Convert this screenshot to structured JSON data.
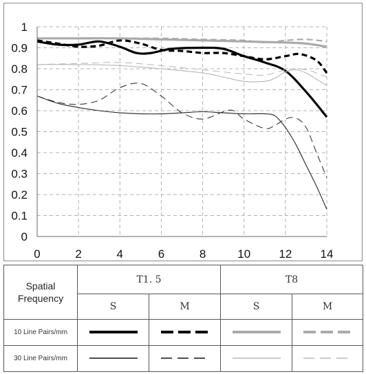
{
  "chart_data": {
    "type": "line",
    "title": "",
    "xlabel": "",
    "ylabel": "",
    "xlim": [
      0,
      14
    ],
    "ylim": [
      0,
      1
    ],
    "xticks": [
      "0",
      "2",
      "4",
      "6",
      "8",
      "10",
      "12",
      "14"
    ],
    "yticks": [
      "0",
      "0.1",
      "0.2",
      "0.3",
      "0.4",
      "0.5",
      "0.6",
      "0.7",
      "0.8",
      "0.9",
      "1"
    ],
    "grid": true,
    "series": [
      {
        "key": "t15-10-s",
        "color": "#000000",
        "width": 3.2,
        "dash": "solid",
        "points": [
          [
            0,
            0.93
          ],
          [
            1,
            0.915
          ],
          [
            2,
            0.915
          ],
          [
            3,
            0.93
          ],
          [
            4,
            0.905
          ],
          [
            4.8,
            0.875
          ],
          [
            5.5,
            0.875
          ],
          [
            6.5,
            0.895
          ],
          [
            8,
            0.9
          ],
          [
            9,
            0.895
          ],
          [
            10,
            0.86
          ],
          [
            11,
            0.83
          ],
          [
            12,
            0.79
          ],
          [
            13,
            0.69
          ],
          [
            14,
            0.57
          ]
        ]
      },
      {
        "key": "t15-10-m",
        "color": "#000000",
        "width": 3.2,
        "dash": "8,5",
        "points": [
          [
            0,
            0.935
          ],
          [
            1,
            0.92
          ],
          [
            2,
            0.905
          ],
          [
            3,
            0.91
          ],
          [
            4,
            0.935
          ],
          [
            5,
            0.92
          ],
          [
            6,
            0.89
          ],
          [
            7,
            0.885
          ],
          [
            8,
            0.875
          ],
          [
            9,
            0.875
          ],
          [
            10,
            0.86
          ],
          [
            11,
            0.845
          ],
          [
            12,
            0.86
          ],
          [
            12.7,
            0.87
          ],
          [
            13.5,
            0.84
          ],
          [
            14,
            0.78
          ]
        ]
      },
      {
        "key": "t15-30-s",
        "color": "#222222",
        "width": 1.1,
        "dash": "solid",
        "points": [
          [
            0,
            0.67
          ],
          [
            1,
            0.635
          ],
          [
            2,
            0.615
          ],
          [
            3,
            0.6
          ],
          [
            4,
            0.59
          ],
          [
            5,
            0.585
          ],
          [
            6,
            0.585
          ],
          [
            7,
            0.59
          ],
          [
            8,
            0.595
          ],
          [
            9,
            0.59
          ],
          [
            10,
            0.585
          ],
          [
            11,
            0.585
          ],
          [
            11.5,
            0.575
          ],
          [
            12,
            0.52
          ],
          [
            12.5,
            0.44
          ],
          [
            13,
            0.34
          ],
          [
            13.5,
            0.24
          ],
          [
            14,
            0.13
          ]
        ]
      },
      {
        "key": "t15-30-m",
        "color": "#333333",
        "width": 1.1,
        "dash": "10,6",
        "points": [
          [
            0,
            0.67
          ],
          [
            1,
            0.64
          ],
          [
            2,
            0.63
          ],
          [
            3,
            0.65
          ],
          [
            4,
            0.71
          ],
          [
            5,
            0.73
          ],
          [
            6,
            0.67
          ],
          [
            7,
            0.59
          ],
          [
            8,
            0.56
          ],
          [
            9,
            0.595
          ],
          [
            9.5,
            0.6
          ],
          [
            10,
            0.56
          ],
          [
            11,
            0.515
          ],
          [
            11.5,
            0.53
          ],
          [
            12,
            0.56
          ],
          [
            12.5,
            0.565
          ],
          [
            13,
            0.52
          ],
          [
            13.5,
            0.4
          ],
          [
            14,
            0.28
          ]
        ]
      },
      {
        "key": "t8-10-s",
        "color": "#aaaaaa",
        "width": 3.2,
        "dash": "solid",
        "points": [
          [
            0,
            0.945
          ],
          [
            2,
            0.945
          ],
          [
            4,
            0.945
          ],
          [
            6,
            0.94
          ],
          [
            8,
            0.935
          ],
          [
            10,
            0.93
          ],
          [
            12,
            0.925
          ],
          [
            13,
            0.92
          ],
          [
            14,
            0.905
          ]
        ]
      },
      {
        "key": "t8-10-m",
        "color": "#aaaaaa",
        "width": 2.2,
        "dash": "9,5",
        "points": [
          [
            0,
            0.945
          ],
          [
            2,
            0.945
          ],
          [
            4,
            0.945
          ],
          [
            6,
            0.945
          ],
          [
            8,
            0.94
          ],
          [
            10,
            0.935
          ],
          [
            11,
            0.925
          ],
          [
            12,
            0.935
          ],
          [
            13,
            0.94
          ],
          [
            14,
            0.93
          ]
        ]
      },
      {
        "key": "t8-30-s",
        "color": "#b5b5b5",
        "width": 1.1,
        "dash": "solid",
        "points": [
          [
            0,
            0.82
          ],
          [
            2,
            0.82
          ],
          [
            4,
            0.815
          ],
          [
            6,
            0.8
          ],
          [
            8,
            0.78
          ],
          [
            9,
            0.76
          ],
          [
            10,
            0.74
          ],
          [
            11,
            0.74
          ],
          [
            11.5,
            0.755
          ],
          [
            12,
            0.785
          ],
          [
            12.5,
            0.795
          ],
          [
            13,
            0.78
          ],
          [
            13.5,
            0.75
          ],
          [
            14,
            0.72
          ]
        ]
      },
      {
        "key": "t8-30-m",
        "color": "#bbbbbb",
        "width": 1.1,
        "dash": "10,6",
        "points": [
          [
            0,
            0.82
          ],
          [
            2,
            0.825
          ],
          [
            4,
            0.83
          ],
          [
            6,
            0.815
          ],
          [
            8,
            0.795
          ],
          [
            10,
            0.775
          ],
          [
            11,
            0.77
          ],
          [
            12,
            0.795
          ],
          [
            12.5,
            0.8
          ],
          [
            13,
            0.795
          ],
          [
            13.5,
            0.78
          ],
          [
            14,
            0.76
          ]
        ]
      }
    ]
  },
  "legend": {
    "header": "Spatial Frequency",
    "header_line1": "Spatial",
    "header_line2": "Frequency",
    "aperture_1": "T1. 5",
    "aperture_2": "T8",
    "col_s": "S",
    "col_m": "M",
    "row_10": "10 Line Pairs/mm",
    "row_30": "30 Line Pairs/mm"
  }
}
